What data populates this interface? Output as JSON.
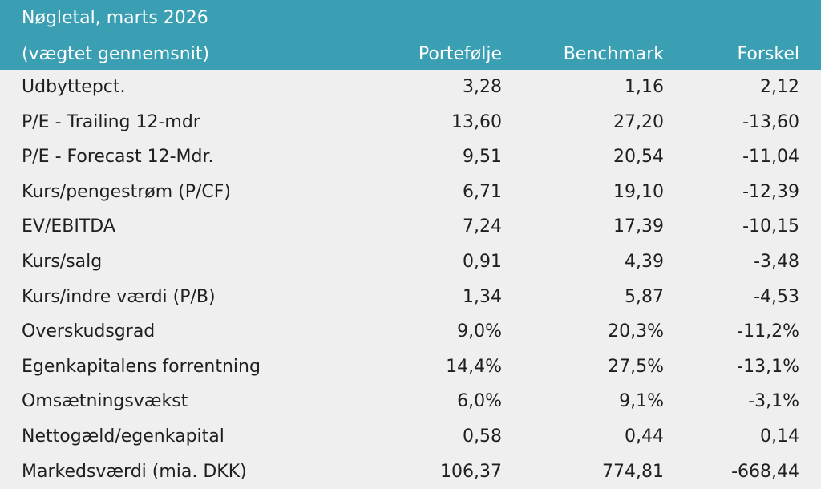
{
  "table": {
    "title": "Nøgletal, marts 2026",
    "subtitle": "(vægtet gennemsnit)",
    "columns": [
      "Portefølje",
      "Benchmark",
      "Forskel"
    ],
    "rows": [
      {
        "label": "Udbyttepct.",
        "portfolio": "3,28",
        "benchmark": "1,16",
        "diff": "2,12"
      },
      {
        "label": "P/E - Trailing 12-mdr",
        "portfolio": "13,60",
        "benchmark": "27,20",
        "diff": "-13,60"
      },
      {
        "label": "P/E - Forecast 12-Mdr.",
        "portfolio": "9,51",
        "benchmark": "20,54",
        "diff": "-11,04"
      },
      {
        "label": "Kurs/pengestrøm (P/CF)",
        "portfolio": "6,71",
        "benchmark": "19,10",
        "diff": "-12,39"
      },
      {
        "label": "EV/EBITDA",
        "portfolio": "7,24",
        "benchmark": "17,39",
        "diff": "-10,15"
      },
      {
        "label": "Kurs/salg",
        "portfolio": "0,91",
        "benchmark": "4,39",
        "diff": "-3,48"
      },
      {
        "label": "Kurs/indre værdi (P/B)",
        "portfolio": "1,34",
        "benchmark": "5,87",
        "diff": "-4,53"
      },
      {
        "label": "Overskudsgrad",
        "portfolio": "9,0%",
        "benchmark": "20,3%",
        "diff": "-11,2%"
      },
      {
        "label": "Egenkapitalens forrentning",
        "portfolio": "14,4%",
        "benchmark": "27,5%",
        "diff": "-13,1%"
      },
      {
        "label": "Omsætningsvækst",
        "portfolio": "6,0%",
        "benchmark": "9,1%",
        "diff": "-3,1%"
      },
      {
        "label": "Nettogæld/egenkapital",
        "portfolio": "0,58",
        "benchmark": "0,44",
        "diff": "0,14"
      },
      {
        "label": "Markedsværdi (mia. DKK)",
        "portfolio": "106,37",
        "benchmark": "774,81",
        "diff": "-668,44"
      }
    ]
  },
  "colors": {
    "header_bg": "#3a9fb3",
    "header_text": "#ffffff",
    "body_bg": "#efefef",
    "body_text": "#1f1f1f"
  }
}
